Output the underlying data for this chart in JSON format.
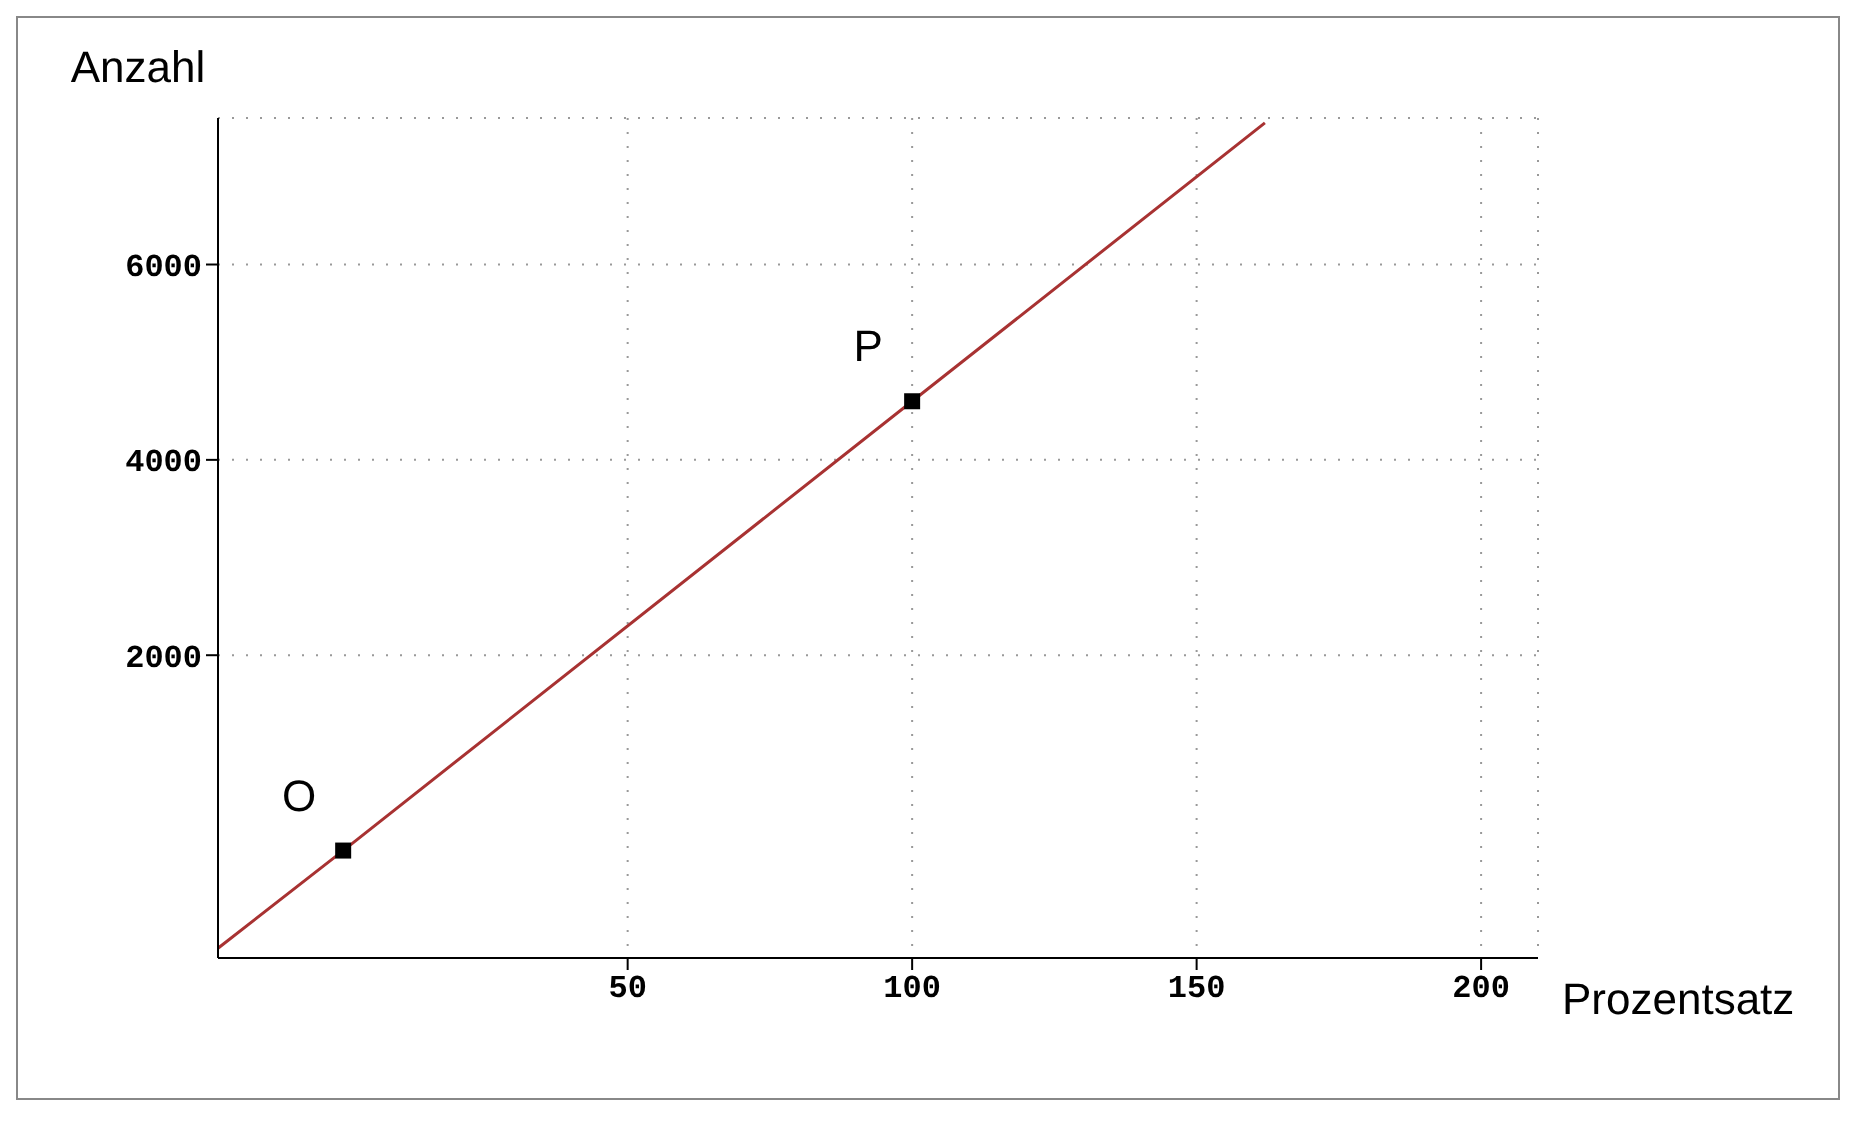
{
  "chart_data": {
    "type": "line",
    "xlabel": "Prozentsatz",
    "ylabel": "Anzahl",
    "xlim": [
      -22,
      210
    ],
    "ylim": [
      -1100,
      7500
    ],
    "xticks": [
      50,
      100,
      150,
      200
    ],
    "yticks": [
      2000,
      4000,
      6000
    ],
    "grid": true,
    "series": [
      {
        "type": "line",
        "color": "#a83232",
        "x": [
          -22,
          0,
          100,
          162
        ],
        "values": [
          -1000,
          0,
          4600,
          7450
        ]
      },
      {
        "type": "scatter",
        "color": "#000000",
        "marker": "square",
        "x": [
          0,
          100
        ],
        "values": [
          0,
          4600
        ]
      }
    ],
    "annotations": [
      {
        "text": "O",
        "x": 0,
        "y": 0
      },
      {
        "text": "P",
        "x": 100,
        "y": 4600
      }
    ]
  }
}
